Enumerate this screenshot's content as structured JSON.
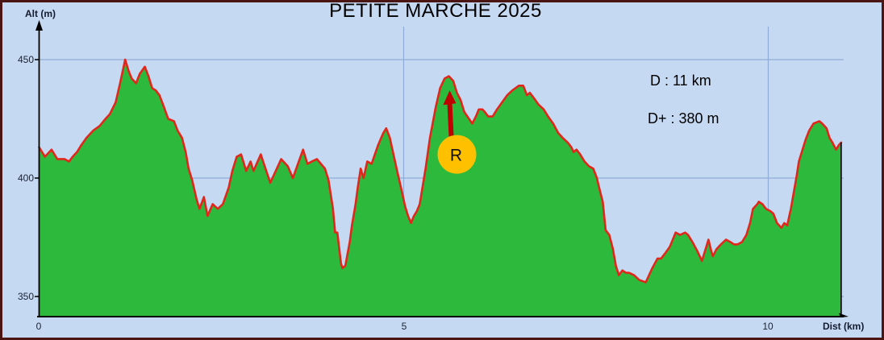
{
  "title": "PETITE MARCHE 2025",
  "annotations": {
    "distance": "D : 11 km",
    "elevation_gain": "D+ : 380 m"
  },
  "axes": {
    "y_label": "Alt (m)",
    "x_label": "Dist (km)",
    "y_ticks": [
      "450",
      "400",
      "350"
    ],
    "x_ticks": [
      "0",
      "5",
      "10"
    ]
  },
  "colors": {
    "background": "#c6d9f2",
    "border": "#4a1512",
    "area_fill": "#2db93c",
    "profile_line": "#e1271b",
    "gridline": "#8fadd6",
    "axis": "#000000",
    "marker_fill": "#ffc000",
    "marker_arrow": "#c00000",
    "text": "#000000"
  },
  "chart_data": {
    "type": "area",
    "title": "PETITE MARCHE 2025",
    "xlabel": "Dist (km)",
    "ylabel": "Alt (m)",
    "xlim": [
      0,
      11
    ],
    "ylim": [
      341,
      464
    ],
    "x_gridlines_km": [
      5,
      10
    ],
    "y_gridlines_m": [
      450,
      400,
      350
    ],
    "grid": true,
    "summary": {
      "distance_km": 11,
      "elevation_gain_m": 380
    },
    "marker": {
      "label": "R",
      "km": 5.73,
      "alt": 410,
      "arrow_tip_alt": 437
    },
    "series": [
      {
        "name": "elevation-profile",
        "points": [
          [
            0,
            413
          ],
          [
            0.08,
            409
          ],
          [
            0.17,
            412
          ],
          [
            0.25,
            408
          ],
          [
            0.35,
            408
          ],
          [
            0.41,
            407
          ],
          [
            0.46,
            409
          ],
          [
            0.52,
            411
          ],
          [
            0.58,
            414
          ],
          [
            0.65,
            417
          ],
          [
            0.74,
            420
          ],
          [
            0.83,
            422
          ],
          [
            0.91,
            425
          ],
          [
            0.97,
            427
          ],
          [
            1.05,
            432
          ],
          [
            1.11,
            440
          ],
          [
            1.18,
            450
          ],
          [
            1.23,
            445
          ],
          [
            1.27,
            442
          ],
          [
            1.33,
            440
          ],
          [
            1.38,
            444
          ],
          [
            1.45,
            447
          ],
          [
            1.5,
            443
          ],
          [
            1.55,
            438
          ],
          [
            1.6,
            437
          ],
          [
            1.65,
            435
          ],
          [
            1.7,
            431
          ],
          [
            1.77,
            425
          ],
          [
            1.85,
            424
          ],
          [
            1.9,
            420
          ],
          [
            1.96,
            417
          ],
          [
            2.01,
            411
          ],
          [
            2.05,
            404
          ],
          [
            2.1,
            399
          ],
          [
            2.16,
            391
          ],
          [
            2.2,
            387
          ],
          [
            2.26,
            392
          ],
          [
            2.31,
            384
          ],
          [
            2.38,
            389
          ],
          [
            2.45,
            387
          ],
          [
            2.52,
            389
          ],
          [
            2.6,
            396
          ],
          [
            2.65,
            403
          ],
          [
            2.71,
            409
          ],
          [
            2.77,
            410
          ],
          [
            2.84,
            403
          ],
          [
            2.9,
            407
          ],
          [
            2.94,
            403
          ],
          [
            3.04,
            410
          ],
          [
            3.17,
            398
          ],
          [
            3.32,
            408
          ],
          [
            3.41,
            405
          ],
          [
            3.48,
            400
          ],
          [
            3.62,
            412
          ],
          [
            3.68,
            406
          ],
          [
            3.74,
            407
          ],
          [
            3.81,
            408
          ],
          [
            3.92,
            404
          ],
          [
            3.97,
            399
          ],
          [
            4.03,
            387
          ],
          [
            4.06,
            377
          ],
          [
            4.09,
            377
          ],
          [
            4.14,
            364
          ],
          [
            4.16,
            362
          ],
          [
            4.2,
            363
          ],
          [
            4.26,
            373
          ],
          [
            4.29,
            380
          ],
          [
            4.34,
            389
          ],
          [
            4.37,
            396
          ],
          [
            4.41,
            404
          ],
          [
            4.45,
            400
          ],
          [
            4.5,
            407
          ],
          [
            4.56,
            406
          ],
          [
            4.65,
            414
          ],
          [
            4.72,
            419
          ],
          [
            4.76,
            421
          ],
          [
            4.81,
            417
          ],
          [
            4.86,
            410
          ],
          [
            4.91,
            403
          ],
          [
            4.97,
            395
          ],
          [
            5.02,
            388
          ],
          [
            5.06,
            384
          ],
          [
            5.1,
            381
          ],
          [
            5.14,
            384
          ],
          [
            5.18,
            386
          ],
          [
            5.22,
            389
          ],
          [
            5.3,
            404
          ],
          [
            5.36,
            417
          ],
          [
            5.44,
            430
          ],
          [
            5.5,
            438
          ],
          [
            5.56,
            442
          ],
          [
            5.62,
            443
          ],
          [
            5.68,
            441
          ],
          [
            5.73,
            436
          ],
          [
            5.78,
            433
          ],
          [
            5.83,
            428
          ],
          [
            5.94,
            423
          ],
          [
            5.99,
            426
          ],
          [
            6.03,
            429
          ],
          [
            6.08,
            429
          ],
          [
            6.11,
            428
          ],
          [
            6.16,
            426
          ],
          [
            6.22,
            426
          ],
          [
            6.28,
            429
          ],
          [
            6.35,
            432
          ],
          [
            6.42,
            435
          ],
          [
            6.49,
            437
          ],
          [
            6.58,
            439
          ],
          [
            6.64,
            439
          ],
          [
            6.69,
            435
          ],
          [
            6.73,
            436
          ],
          [
            6.78,
            434
          ],
          [
            6.85,
            431
          ],
          [
            6.92,
            429
          ],
          [
            6.98,
            426
          ],
          [
            7.05,
            423
          ],
          [
            7.12,
            419
          ],
          [
            7.18,
            417
          ],
          [
            7.25,
            415
          ],
          [
            7.3,
            413
          ],
          [
            7.33,
            411
          ],
          [
            7.37,
            412
          ],
          [
            7.42,
            410
          ],
          [
            7.48,
            407
          ],
          [
            7.54,
            405
          ],
          [
            7.6,
            404
          ],
          [
            7.65,
            400
          ],
          [
            7.68,
            396
          ],
          [
            7.73,
            390
          ],
          [
            7.77,
            378
          ],
          [
            7.82,
            376
          ],
          [
            7.87,
            370
          ],
          [
            7.91,
            363
          ],
          [
            7.95,
            359
          ],
          [
            8.0,
            361
          ],
          [
            8.05,
            360
          ],
          [
            8.09,
            360
          ],
          [
            8.16,
            359
          ],
          [
            8.23,
            357
          ],
          [
            8.32,
            356
          ],
          [
            8.41,
            362
          ],
          [
            8.48,
            366
          ],
          [
            8.53,
            366
          ],
          [
            8.58,
            368
          ],
          [
            8.65,
            371
          ],
          [
            8.73,
            377
          ],
          [
            8.79,
            376
          ],
          [
            8.86,
            377
          ],
          [
            8.9,
            376
          ],
          [
            8.96,
            373
          ],
          [
            9.03,
            369
          ],
          [
            9.09,
            365
          ],
          [
            9.14,
            370
          ],
          [
            9.18,
            374
          ],
          [
            9.22,
            369
          ],
          [
            9.24,
            367
          ],
          [
            9.29,
            370
          ],
          [
            9.35,
            372
          ],
          [
            9.42,
            374
          ],
          [
            9.48,
            373
          ],
          [
            9.53,
            372
          ],
          [
            9.58,
            372
          ],
          [
            9.64,
            373
          ],
          [
            9.7,
            376
          ],
          [
            9.75,
            381
          ],
          [
            9.79,
            387
          ],
          [
            9.85,
            389
          ],
          [
            9.87,
            390
          ],
          [
            9.92,
            389
          ],
          [
            9.97,
            387
          ],
          [
            10.03,
            386
          ],
          [
            10.07,
            385
          ],
          [
            10.12,
            381
          ],
          [
            10.18,
            379
          ],
          [
            10.22,
            381
          ],
          [
            10.26,
            380
          ],
          [
            10.31,
            387
          ],
          [
            10.35,
            394
          ],
          [
            10.39,
            401
          ],
          [
            10.42,
            407
          ],
          [
            10.46,
            411
          ],
          [
            10.51,
            416
          ],
          [
            10.56,
            420
          ],
          [
            10.62,
            423
          ],
          [
            10.7,
            424
          ],
          [
            10.74,
            423
          ],
          [
            10.8,
            421
          ],
          [
            10.84,
            417
          ],
          [
            10.88,
            415
          ],
          [
            10.93,
            412
          ],
          [
            10.97,
            414
          ],
          [
            11,
            415
          ]
        ]
      }
    ]
  }
}
